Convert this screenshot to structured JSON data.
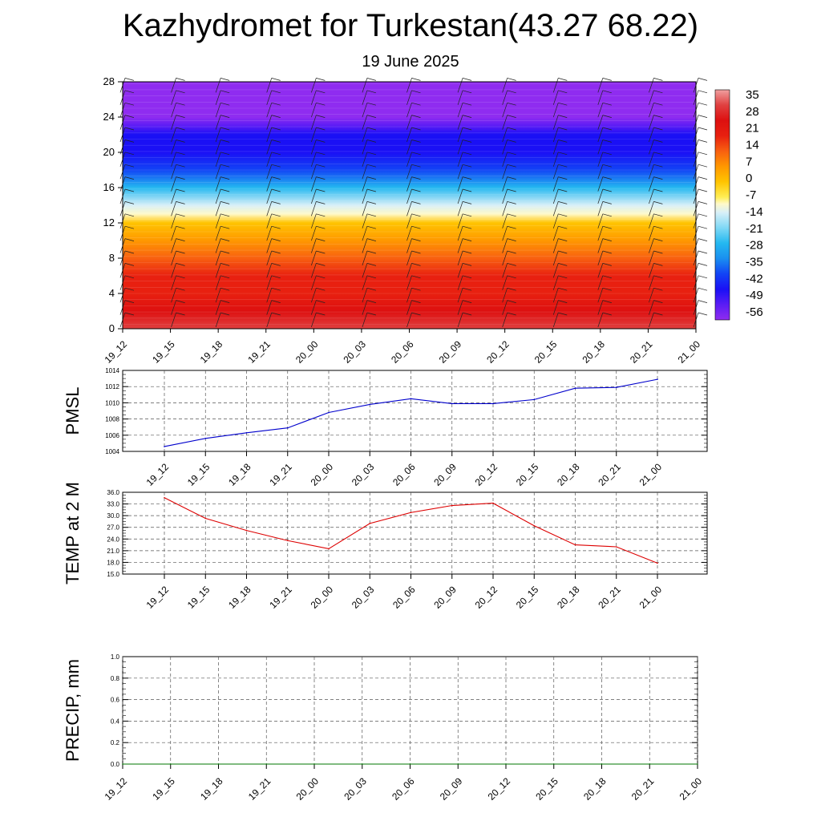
{
  "title": "Kazhydromet for Turkestan(43.27 68.22)",
  "subtitle": "19 June 2025",
  "time_labels": [
    "19_12",
    "19_15",
    "19_18",
    "19_21",
    "20_00",
    "20_03",
    "20_06",
    "20_09",
    "20_12",
    "20_15",
    "20_18",
    "20_21",
    "21_00"
  ],
  "chart_data": [
    {
      "type": "heatmap",
      "name": "upper-air-temperature-cross-section",
      "x": [
        "19_12",
        "19_15",
        "19_18",
        "19_21",
        "20_00",
        "20_03",
        "20_06",
        "20_09",
        "20_12",
        "20_15",
        "20_18",
        "20_21",
        "21_00"
      ],
      "y_ticks": [
        0,
        4,
        8,
        12,
        16,
        20,
        24,
        28
      ],
      "ylim": [
        0,
        28
      ],
      "colorbar_labels": [
        "35",
        "28",
        "21",
        "14",
        "7",
        "0",
        "-7",
        "-14",
        "-21",
        "-28",
        "-35",
        "-42",
        "-49",
        "-56"
      ],
      "colorbar_range": [
        -63,
        42
      ],
      "color_stops": [
        {
          "t": -63,
          "color": "#8f2cf0"
        },
        {
          "t": -56,
          "color": "#5a1cf5"
        },
        {
          "t": -49,
          "color": "#1a10f5"
        },
        {
          "t": -42,
          "color": "#1244f5"
        },
        {
          "t": -35,
          "color": "#1a8ff0"
        },
        {
          "t": -28,
          "color": "#24b8f0"
        },
        {
          "t": -21,
          "color": "#7fd8f5"
        },
        {
          "t": -14,
          "color": "#d8f0f8"
        },
        {
          "t": -10,
          "color": "#fff9c8"
        },
        {
          "t": -7,
          "color": "#ffee55"
        },
        {
          "t": 0,
          "color": "#ffc400"
        },
        {
          "t": 7,
          "color": "#ff9800"
        },
        {
          "t": 14,
          "color": "#f86010"
        },
        {
          "t": 21,
          "color": "#e82010"
        },
        {
          "t": 28,
          "color": "#dd1010"
        },
        {
          "t": 35,
          "color": "#e04040"
        },
        {
          "t": 42,
          "color": "#f0a0a0"
        }
      ],
      "temperature_profile": [
        {
          "y": 0,
          "t": 33
        },
        {
          "y": 2,
          "t": 29
        },
        {
          "y": 4,
          "t": 24
        },
        {
          "y": 6,
          "t": 19
        },
        {
          "y": 8,
          "t": 12
        },
        {
          "y": 10,
          "t": 5
        },
        {
          "y": 12,
          "t": -2
        },
        {
          "y": 13,
          "t": -9
        },
        {
          "y": 14,
          "t": -16
        },
        {
          "y": 16,
          "t": -30
        },
        {
          "y": 18,
          "t": -44
        },
        {
          "y": 20,
          "t": -52
        },
        {
          "y": 21,
          "t": -51
        },
        {
          "y": 22,
          "t": -48
        },
        {
          "y": 23,
          "t": -54
        },
        {
          "y": 24,
          "t": -60
        },
        {
          "y": 28,
          "t": -62
        }
      ]
    },
    {
      "type": "line",
      "name": "pmsl",
      "ylabel": "PMSL",
      "x": [
        "19_12",
        "19_15",
        "19_18",
        "19_21",
        "20_00",
        "20_03",
        "20_06",
        "20_09",
        "20_12",
        "20_15",
        "20_18",
        "20_21",
        "21_00"
      ],
      "series": [
        {
          "values": [
            1004.6,
            1005.6,
            1006.3,
            1006.9,
            1008.8,
            1009.8,
            1010.5,
            1009.9,
            1009.9,
            1010.4,
            1011.8,
            1011.9,
            1012.9
          ],
          "color": "#0000cc"
        }
      ],
      "ylim": [
        1004,
        1014
      ],
      "y_ticks": [
        1004,
        1006,
        1008,
        1010,
        1012,
        1014
      ],
      "y_tick_labels": [
        "1004",
        "1006",
        "1008",
        "1010",
        "1012",
        "1014"
      ],
      "grid": true
    },
    {
      "type": "line",
      "name": "temp-2m",
      "ylabel": "TEMP at 2 M",
      "x": [
        "19_12",
        "19_15",
        "19_18",
        "19_21",
        "20_00",
        "20_03",
        "20_06",
        "20_09",
        "20_12",
        "20_15",
        "20_18",
        "20_21",
        "21_00"
      ],
      "series": [
        {
          "values": [
            34.6,
            29.3,
            26.2,
            23.6,
            21.5,
            28.0,
            30.8,
            32.6,
            33.2,
            27.4,
            22.5,
            22.0,
            17.8
          ],
          "color": "#dd0000"
        }
      ],
      "ylim": [
        15,
        36
      ],
      "y_ticks": [
        15,
        18,
        21,
        24,
        27,
        30,
        33,
        36
      ],
      "y_tick_labels": [
        "15.0",
        "18.0",
        "21.0",
        "24.0",
        "27.0",
        "30.0",
        "33.0",
        "36.0"
      ],
      "grid": true
    },
    {
      "type": "line",
      "name": "precip",
      "ylabel": "PRECIP, mm",
      "x": [
        "19_12",
        "19_15",
        "19_18",
        "19_21",
        "20_00",
        "20_03",
        "20_06",
        "20_09",
        "20_12",
        "20_15",
        "20_18",
        "20_21",
        "21_00"
      ],
      "series": [
        {
          "values": [
            0,
            0,
            0,
            0,
            0,
            0,
            0,
            0,
            0,
            0,
            0,
            0,
            0
          ],
          "color": "#007700"
        }
      ],
      "ylim": [
        0,
        1
      ],
      "y_ticks": [
        0,
        0.2,
        0.4,
        0.6,
        0.8,
        1.0
      ],
      "y_tick_labels": [
        "0.0",
        "0.2",
        "0.4",
        "0.6",
        "0.8",
        "1.0"
      ],
      "grid": true
    }
  ]
}
